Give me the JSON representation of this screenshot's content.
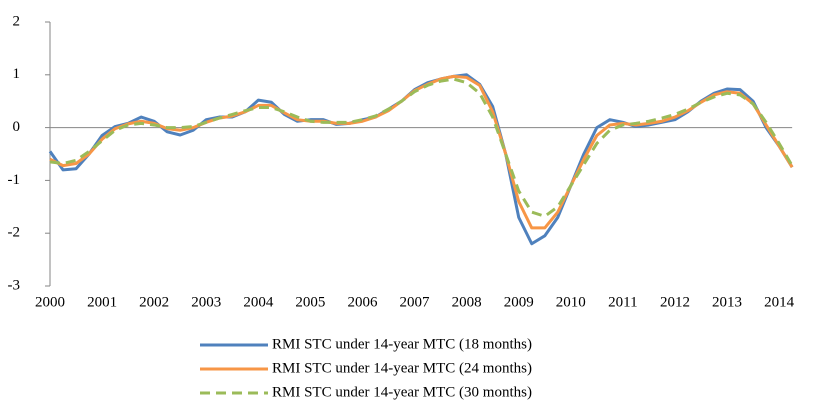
{
  "chart_data": {
    "type": "line",
    "categories": [
      "2000",
      null,
      null,
      null,
      "2001",
      null,
      null,
      null,
      "2002",
      null,
      null,
      null,
      "2003",
      null,
      null,
      null,
      "2004",
      null,
      null,
      null,
      "2005",
      null,
      null,
      null,
      "2006",
      null,
      null,
      null,
      "2007",
      null,
      null,
      null,
      "2008",
      null,
      null,
      null,
      "2009",
      null,
      null,
      null,
      "2010",
      null,
      null,
      null,
      "2011",
      null,
      null,
      null,
      "2012",
      null,
      null,
      null,
      "2013",
      null,
      null,
      null,
      "2014",
      null
    ],
    "series": [
      {
        "name": "RMI STC under 14-year MTC (18 months)",
        "color": "#4f81bd",
        "line_style": "solid",
        "values": [
          -0.45,
          -0.8,
          -0.78,
          -0.5,
          -0.15,
          0.02,
          0.08,
          0.2,
          0.12,
          -0.08,
          -0.14,
          -0.05,
          0.15,
          0.2,
          0.2,
          0.3,
          0.52,
          0.48,
          0.25,
          0.12,
          0.15,
          0.15,
          0.06,
          0.08,
          0.15,
          0.2,
          0.35,
          0.5,
          0.72,
          0.85,
          0.92,
          0.97,
          1.0,
          0.82,
          0.4,
          -0.5,
          -1.7,
          -2.2,
          -2.05,
          -1.7,
          -1.1,
          -0.5,
          0.0,
          0.15,
          0.1,
          0.02,
          0.05,
          0.1,
          0.15,
          0.3,
          0.5,
          0.65,
          0.73,
          0.72,
          0.5,
          0.0,
          -0.35,
          -0.75
        ]
      },
      {
        "name": "RMI STC under 14-year MTC (24 months)",
        "color": "#f79646",
        "line_style": "solid",
        "values": [
          -0.6,
          -0.72,
          -0.68,
          -0.5,
          -0.22,
          -0.02,
          0.07,
          0.12,
          0.08,
          -0.02,
          -0.05,
          0.0,
          0.1,
          0.18,
          0.22,
          0.3,
          0.42,
          0.42,
          0.28,
          0.15,
          0.12,
          0.12,
          0.08,
          0.08,
          0.12,
          0.2,
          0.32,
          0.5,
          0.7,
          0.82,
          0.92,
          0.97,
          0.95,
          0.8,
          0.3,
          -0.5,
          -1.4,
          -1.9,
          -1.9,
          -1.6,
          -1.1,
          -0.6,
          -0.15,
          0.05,
          0.08,
          0.05,
          0.08,
          0.12,
          0.2,
          0.32,
          0.48,
          0.62,
          0.68,
          0.65,
          0.45,
          0.05,
          -0.35,
          -0.75
        ]
      },
      {
        "name": "RMI STC under 14-year MTC (30 months)",
        "color": "#9bbb59",
        "line_style": "dashed",
        "values": [
          -0.65,
          -0.68,
          -0.62,
          -0.45,
          -0.25,
          -0.05,
          0.05,
          0.08,
          0.05,
          0.0,
          0.0,
          0.02,
          0.1,
          0.18,
          0.25,
          0.32,
          0.38,
          0.38,
          0.3,
          0.2,
          0.12,
          0.1,
          0.1,
          0.1,
          0.15,
          0.22,
          0.35,
          0.5,
          0.68,
          0.8,
          0.88,
          0.92,
          0.85,
          0.65,
          0.2,
          -0.5,
          -1.2,
          -1.6,
          -1.68,
          -1.5,
          -1.1,
          -0.7,
          -0.3,
          -0.05,
          0.05,
          0.08,
          0.12,
          0.18,
          0.25,
          0.35,
          0.48,
          0.58,
          0.65,
          0.62,
          0.45,
          0.1,
          -0.3,
          -0.72
        ]
      }
    ],
    "ylim": [
      -3,
      2
    ],
    "yticks": [
      -3,
      -2,
      -1,
      0,
      1,
      2
    ],
    "grid": false
  }
}
